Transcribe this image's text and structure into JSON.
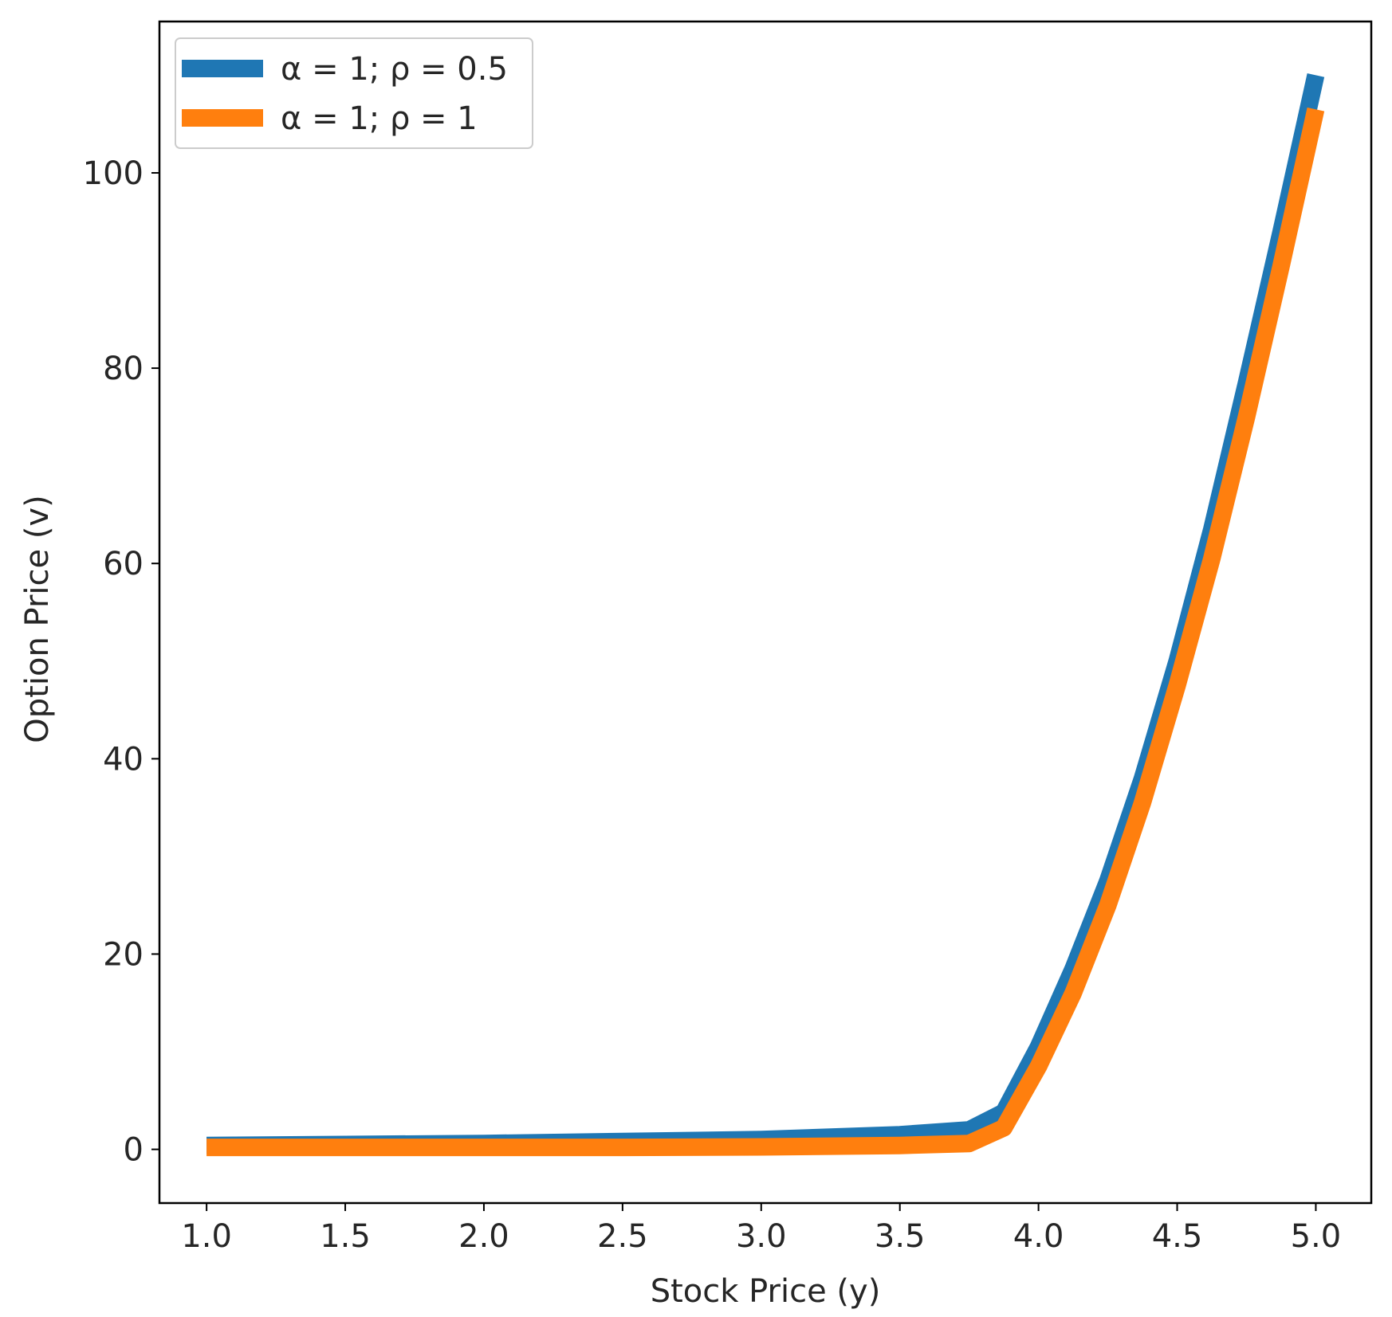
{
  "chart_data": {
    "type": "line",
    "xlabel": "Stock Price (y)",
    "ylabel": "Option Price (v)",
    "xlim": [
      0.83,
      5.2
    ],
    "ylim": [
      -5.5,
      115.5
    ],
    "xticks": [
      1.0,
      1.5,
      2.0,
      2.5,
      3.0,
      3.5,
      4.0,
      4.5,
      5.0
    ],
    "xtick_labels": [
      "1.0",
      "1.5",
      "2.0",
      "2.5",
      "3.0",
      "3.5",
      "4.0",
      "4.5",
      "5.0"
    ],
    "yticks": [
      0,
      20,
      40,
      60,
      80,
      100
    ],
    "ytick_labels": [
      "0",
      "20",
      "40",
      "60",
      "80",
      "100"
    ],
    "grid": false,
    "legend_position": "top-left",
    "series": [
      {
        "name": "α = 1; ρ = 0.5",
        "color": "#1f77b4",
        "x": [
          1.0,
          1.5,
          2.0,
          2.5,
          3.0,
          3.5,
          3.75,
          3.875,
          4.0,
          4.125,
          4.25,
          4.375,
          4.5,
          4.625,
          4.75,
          4.875,
          5.0
        ],
        "y": [
          0.4,
          0.5,
          0.6,
          0.8,
          1.0,
          1.5,
          2.0,
          3.8,
          10.5,
          18.5,
          27.5,
          38.0,
          50.0,
          63.5,
          78.5,
          94.0,
          110.0
        ]
      },
      {
        "name": "α = 1; ρ = 1",
        "color": "#ff7f0e",
        "x": [
          1.0,
          1.5,
          2.0,
          2.5,
          3.0,
          3.5,
          3.75,
          3.875,
          4.0,
          4.125,
          4.25,
          4.375,
          4.5,
          4.625,
          4.75,
          4.875,
          5.0
        ],
        "y": [
          0.2,
          0.2,
          0.2,
          0.2,
          0.25,
          0.4,
          0.6,
          2.2,
          8.5,
          16.0,
          25.0,
          35.5,
          47.5,
          60.5,
          75.0,
          90.5,
          106.5
        ]
      }
    ]
  }
}
